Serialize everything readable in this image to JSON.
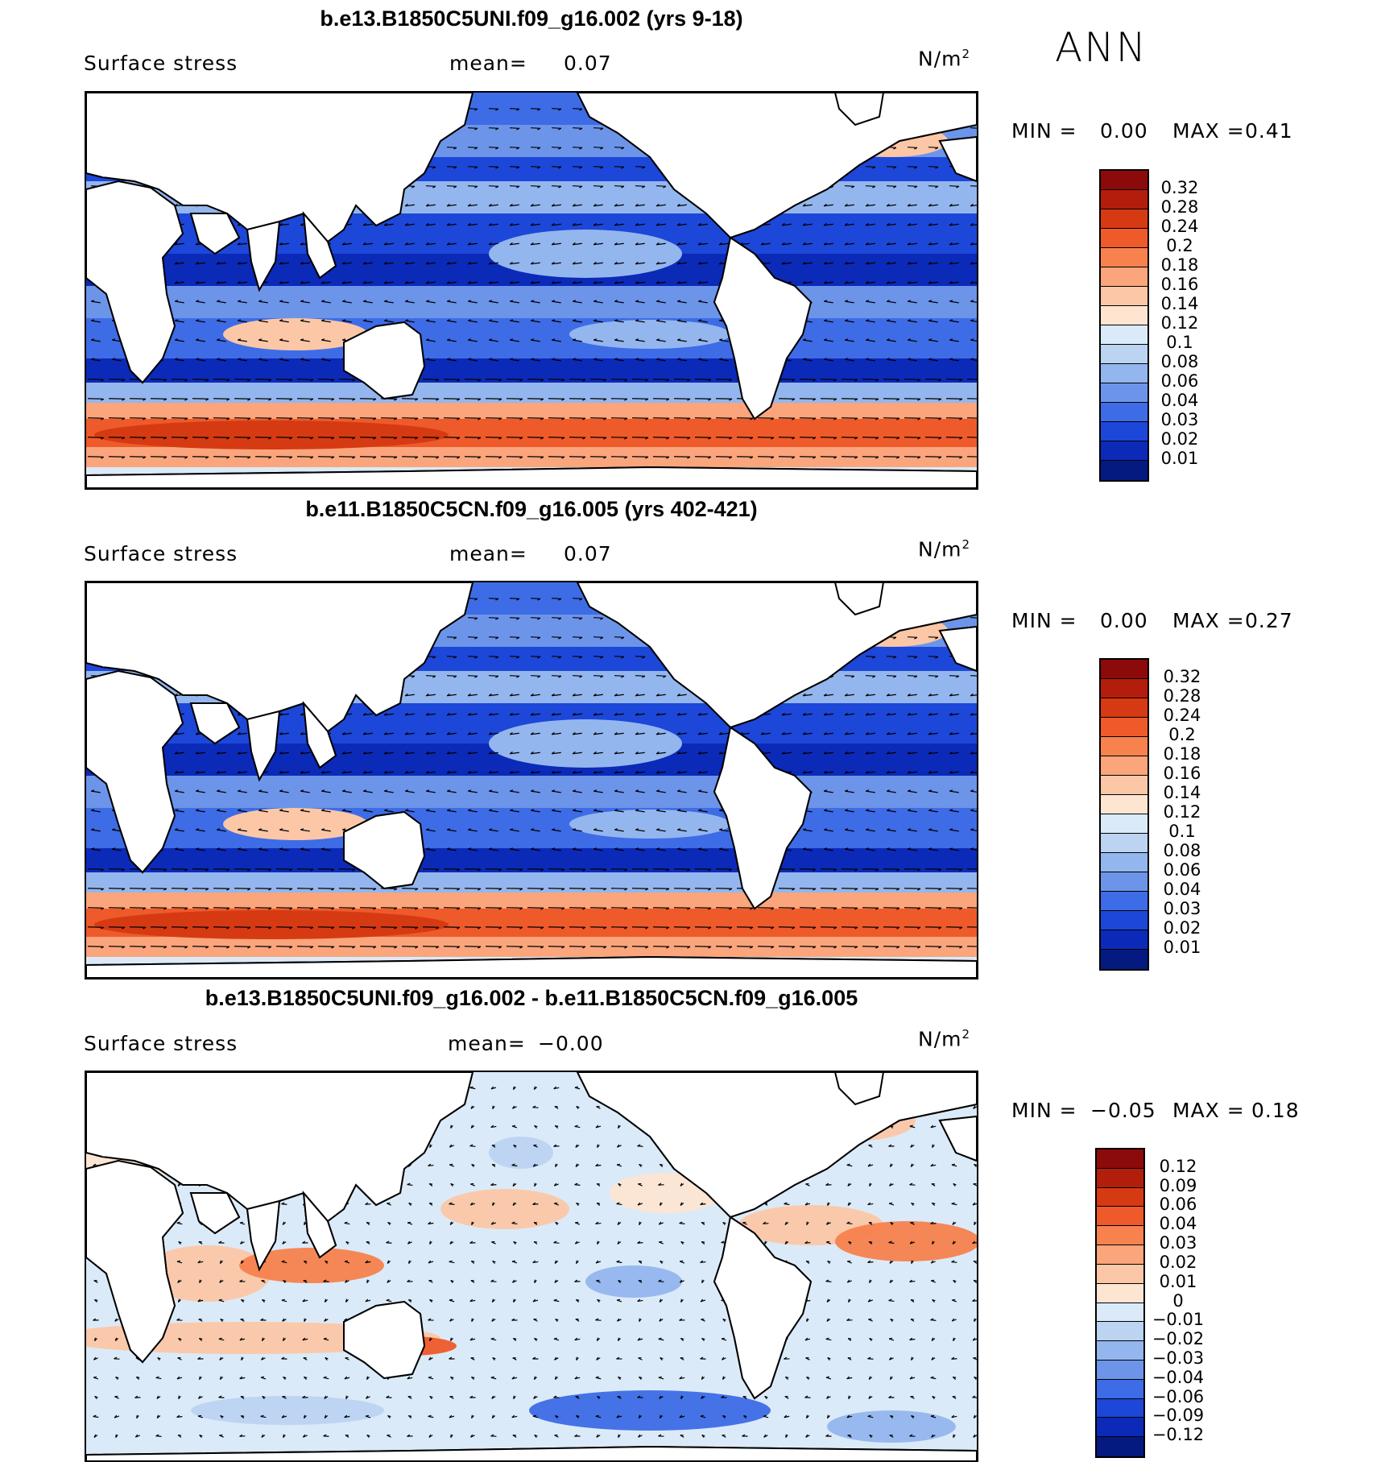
{
  "season": "ANN",
  "units_base": "N/m",
  "units_exp": "2",
  "panels": [
    {
      "title": "b.e13.B1850C5UNI.f09_g16.002 (yrs 9-18)",
      "variable": "Surface stress",
      "mean_label": "mean=",
      "mean_value": "0.07",
      "min_label": "MIN =",
      "min_value": "0.00",
      "max_label": "MAX =",
      "max_value": "0.41",
      "colorbar_labels": [
        "0.32",
        "0.28",
        "0.24",
        "0.2",
        "0.18",
        "0.16",
        "0.14",
        "0.12",
        "0.1",
        "0.08",
        "0.06",
        "0.04",
        "0.03",
        "0.02",
        "0.01"
      ],
      "colorbar_colors": [
        "#8c0a0a",
        "#b31e0c",
        "#d63a12",
        "#ef5a2a",
        "#f7824e",
        "#fba57d",
        "#fcc7a6",
        "#fde5d2",
        "#dbeaf8",
        "#bcd3f2",
        "#94b6ee",
        "#6c95ea",
        "#3e6ce6",
        "#1d47d8",
        "#0c2ab8",
        "#041a80"
      ]
    },
    {
      "title": "b.e11.B1850C5CN.f09_g16.005 (yrs 402-421)",
      "variable": "Surface stress",
      "mean_label": "mean=",
      "mean_value": "0.07",
      "min_label": "MIN =",
      "min_value": "0.00",
      "max_label": "MAX =",
      "max_value": "0.27",
      "colorbar_labels": [
        "0.32",
        "0.28",
        "0.24",
        "0.2",
        "0.18",
        "0.16",
        "0.14",
        "0.12",
        "0.1",
        "0.08",
        "0.06",
        "0.04",
        "0.03",
        "0.02",
        "0.01"
      ],
      "colorbar_colors": [
        "#8c0a0a",
        "#b31e0c",
        "#d63a12",
        "#ef5a2a",
        "#f7824e",
        "#fba57d",
        "#fcc7a6",
        "#fde5d2",
        "#dbeaf8",
        "#bcd3f2",
        "#94b6ee",
        "#6c95ea",
        "#3e6ce6",
        "#1d47d8",
        "#0c2ab8",
        "#041a80"
      ]
    },
    {
      "title": "b.e13.B1850C5UNI.f09_g16.002 - b.e11.B1850C5CN.f09_g16.005",
      "variable": "Surface stress",
      "mean_label": "mean=",
      "mean_value": "−0.00",
      "min_label": "MIN =",
      "min_value": "−0.05",
      "max_label": "MAX =",
      "max_value": "0.18",
      "colorbar_labels": [
        "0.12",
        "0.09",
        "0.06",
        "0.04",
        "0.03",
        "0.02",
        "0.01",
        "0",
        "−0.01",
        "−0.02",
        "−0.03",
        "−0.04",
        "−0.06",
        "−0.09",
        "−0.12"
      ],
      "colorbar_colors": [
        "#8c0a0a",
        "#b31e0c",
        "#d63a12",
        "#ef5a2a",
        "#f7824e",
        "#fba57d",
        "#fcc7a6",
        "#fde5d2",
        "#dbeaf8",
        "#bcd3f2",
        "#94b6ee",
        "#6c95ea",
        "#3e6ce6",
        "#1d47d8",
        "#0c2ab8",
        "#041a80"
      ]
    }
  ]
}
